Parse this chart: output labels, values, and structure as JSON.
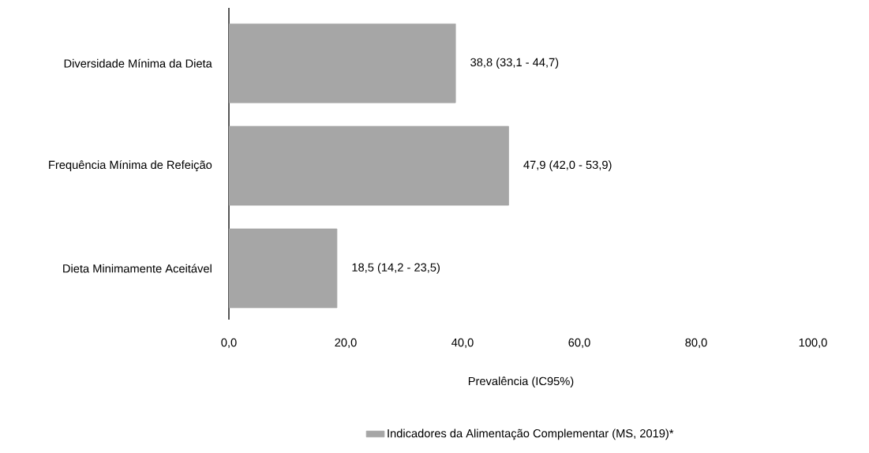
{
  "chart_data": {
    "type": "bar",
    "orientation": "horizontal",
    "categories": [
      "Diversidade Mínima da Dieta",
      "Frequência Mínima de Refeição",
      "Dieta Minimamente Aceitável"
    ],
    "series": [
      {
        "name": "Indicadores da Alimentação Complementar (MS, 2019)*",
        "color": "#a6a6a6",
        "values": [
          38.8,
          47.9,
          18.5
        ],
        "value_labels": [
          "38,8 (33,1 - 44,7)",
          "47,9 (42,0 - 53,9)",
          "18,5 (14,2 - 23,5)"
        ]
      }
    ],
    "xlabel": "Prevalência (IC95%)",
    "xlim": [
      0,
      100
    ],
    "xticks": [
      {
        "value": 0,
        "label": "0,0"
      },
      {
        "value": 20,
        "label": "20,0"
      },
      {
        "value": 40,
        "label": "40,0"
      },
      {
        "value": 60,
        "label": "60,0"
      },
      {
        "value": 80,
        "label": "80,0"
      },
      {
        "value": 100,
        "label": "100,0"
      }
    ],
    "grid": false,
    "legend": "bottom"
  }
}
